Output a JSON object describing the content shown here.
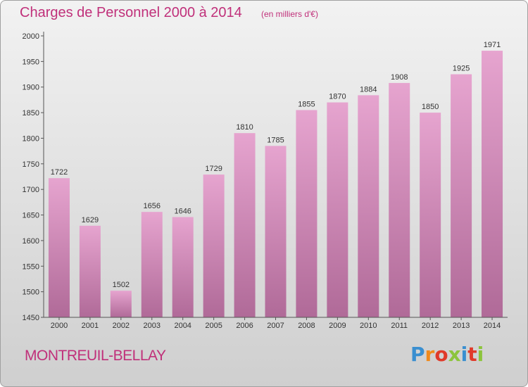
{
  "title": "Charges de Personnel 2000 à 2014",
  "unit_note": "(en milliers d'€)",
  "commune": "MONTREUIL-BELLAY",
  "logo_text": "Proxiti",
  "colors": {
    "title": "#c0307a",
    "bar_top": "#e6a4cf",
    "bar_bottom": "#b06a98",
    "axis": "#555555"
  },
  "chart_data": {
    "type": "bar",
    "title": "Charges de Personnel 2000 à 2014",
    "subtitle": "(en milliers d'€)",
    "xlabel": "",
    "ylabel": "",
    "categories": [
      "2000",
      "2001",
      "2002",
      "2003",
      "2004",
      "2005",
      "2006",
      "2007",
      "2008",
      "2009",
      "2010",
      "2011",
      "2012",
      "2013",
      "2014"
    ],
    "values": [
      1722,
      1629,
      1502,
      1656,
      1646,
      1729,
      1810,
      1785,
      1855,
      1870,
      1884,
      1908,
      1850,
      1925,
      1971
    ],
    "ylim": [
      1450,
      2000
    ],
    "yticks": [
      1450,
      1500,
      1550,
      1600,
      1650,
      1700,
      1750,
      1800,
      1850,
      1900,
      1950,
      2000
    ],
    "grid": false,
    "data_labels": true
  }
}
